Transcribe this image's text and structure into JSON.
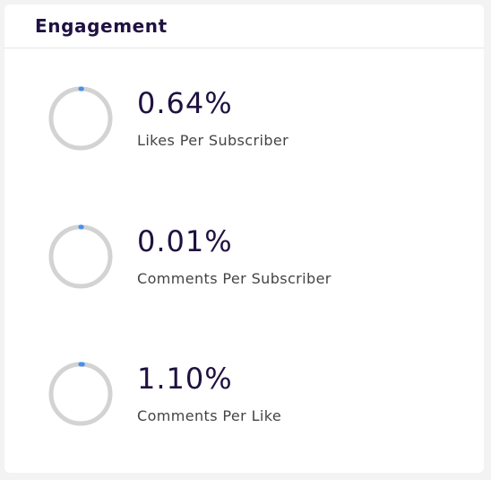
{
  "header": {
    "title": "Engagement"
  },
  "colors": {
    "ring_track": "#d3d3d3",
    "ring_progress": "#4a8fe7",
    "value_text": "#1f1140"
  },
  "metrics": [
    {
      "value": "0.64%",
      "label": "Likes Per Subscriber",
      "fraction": 0.0064
    },
    {
      "value": "0.01%",
      "label": "Comments Per Subscriber",
      "fraction": 0.0001
    },
    {
      "value": "1.10%",
      "label": "Comments Per Like",
      "fraction": 0.011
    }
  ]
}
